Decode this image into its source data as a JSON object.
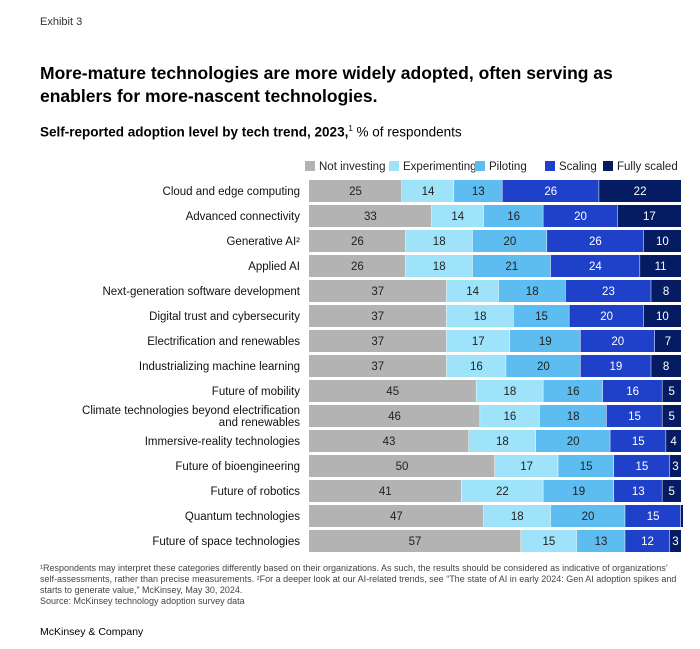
{
  "exhibit_label": "Exhibit 3",
  "title": "More-mature technologies are more widely adopted, often serving as enablers for more-nascent technologies.",
  "subtitle_bold": "Self-reported adoption level by tech trend, 2023,",
  "subtitle_sup": "1",
  "subtitle_rest": " % of respondents",
  "footnote": "¹Respondents may interpret these categories differently based on their organizations. As such, the results should be considered as indicative of organizations’ self-assessments, rather than precise measurements. ²For a deeper look at our AI-related trends, see “The state of AI in early 2024: Gen AI adoption spikes and starts to generate value,” McKinsey, May 30, 2024.",
  "source": "Source: McKinsey technology adoption survey data",
  "brand": "McKinsey & Company",
  "chart_data": {
    "type": "bar",
    "orientation": "horizontal",
    "stacked": true,
    "title": "Self-reported adoption level by tech trend, 2023, % of respondents",
    "legend_position": "top",
    "categories": [
      "Cloud and edge computing",
      "Advanced connectivity",
      "Generative AI²",
      "Applied AI",
      "Next-generation software development",
      "Digital trust and cybersecurity",
      "Electrification and renewables",
      "Industrializing machine learning",
      "Future of mobility",
      "Climate technologies beyond electrification and renewables",
      "Immersive-reality technologies",
      "Future of bioengineering",
      "Future of robotics",
      "Quantum technologies",
      "Future of space technologies"
    ],
    "series": [
      {
        "name": "Not investing",
        "color": "#b3b3b3",
        "label_color": "#222222",
        "values": [
          25,
          33,
          26,
          26,
          37,
          37,
          37,
          37,
          45,
          46,
          43,
          50,
          41,
          47,
          57
        ]
      },
      {
        "name": "Experimenting",
        "color": "#9ee3fa",
        "label_color": "#222222",
        "values": [
          14,
          14,
          18,
          18,
          14,
          18,
          17,
          16,
          18,
          16,
          18,
          17,
          22,
          18,
          15
        ]
      },
      {
        "name": "Piloting",
        "color": "#5dbcf0",
        "label_color": "#222222",
        "values": [
          13,
          16,
          20,
          21,
          18,
          15,
          19,
          20,
          16,
          18,
          20,
          15,
          19,
          20,
          13
        ]
      },
      {
        "name": "Scaling",
        "color": "#1f40c8",
        "label_color": "#ffffff",
        "values": [
          26,
          20,
          26,
          24,
          23,
          20,
          20,
          19,
          16,
          15,
          15,
          15,
          13,
          15,
          12
        ]
      },
      {
        "name": "Fully scaled",
        "color": "#051c63",
        "label_color": "#ffffff",
        "values": [
          22,
          17,
          10,
          11,
          8,
          10,
          7,
          8,
          5,
          5,
          4,
          3,
          5,
          null,
          3
        ]
      }
    ]
  }
}
